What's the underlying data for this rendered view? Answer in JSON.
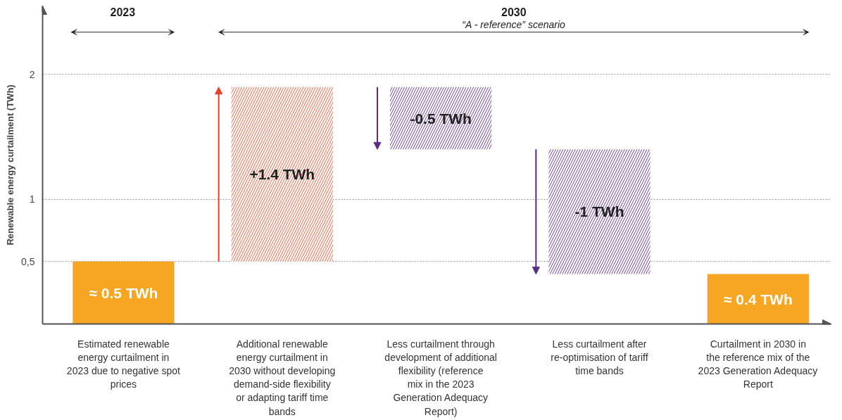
{
  "chart_data": {
    "type": "bar",
    "ylabel": "Renewable energy curtailment (TWh)",
    "categories": [
      "Estimated renewable energy curtailment in 2023 due to negative spot prices",
      "Additional renewable energy curtailment in 2030 without developing demand-side flexibility or adapting tariff time bands",
      "Less curtailment through development of additional flexibility (reference mix in the 2023 Generation Adequacy Report)",
      "Less curtailment after re-optimisation of tariff time bands",
      "Curtailment in 2030 in the reference mix of the 2023 Generation Adequacy Report"
    ],
    "values": [
      0.5,
      1.4,
      -0.5,
      -1,
      0.4
    ],
    "base": [
      0,
      0.5,
      1.9,
      1.4,
      0
    ],
    "colors": [
      "#f6a623",
      "#ef6040",
      "#6c3d99",
      "#6c3d99",
      "#f6a623"
    ],
    "value_labels": [
      "≈ 0.5 TWh",
      "+1.4 TWh",
      "-0.5 TWh",
      "-1 TWh",
      "≈ 0.4 TWh"
    ],
    "ylim": [
      0,
      2.55
    ],
    "yticks": [
      {
        "value": 0.5,
        "label": "0,5"
      },
      1,
      2
    ],
    "grid": "y",
    "annotations": [
      "2023",
      "2030",
      "“A - reference” scenario"
    ]
  }
}
